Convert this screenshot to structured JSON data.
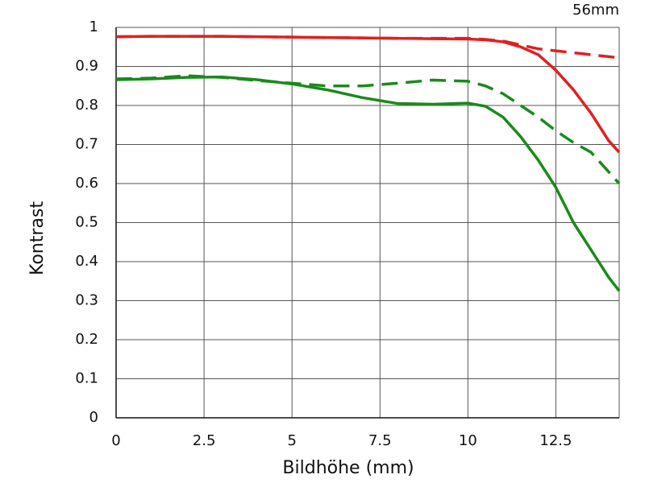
{
  "chart_data": {
    "type": "line",
    "annotation": "56mm",
    "x_label": "Bildhöhe (mm)",
    "y_label": "Kontrast",
    "x": [
      0,
      1,
      2,
      3,
      4,
      5,
      6,
      7,
      8,
      9,
      10,
      10.5,
      11,
      11.5,
      12,
      12.5,
      13,
      13.5,
      14,
      14.3
    ],
    "series": [
      {
        "color": "#e02020",
        "style": "solid",
        "values": [
          0.976,
          0.977,
          0.977,
          0.977,
          0.976,
          0.975,
          0.974,
          0.973,
          0.972,
          0.971,
          0.97,
          0.968,
          0.963,
          0.95,
          0.93,
          0.89,
          0.84,
          0.78,
          0.71,
          0.68
        ]
      },
      {
        "color": "#e02020",
        "style": "dashed",
        "values": [
          0.976,
          0.977,
          0.977,
          0.977,
          0.976,
          0.975,
          0.974,
          0.973,
          0.972,
          0.972,
          0.972,
          0.969,
          0.965,
          0.955,
          0.945,
          0.94,
          0.935,
          0.93,
          0.925,
          0.922
        ]
      },
      {
        "color": "#1a8a1a",
        "style": "solid",
        "values": [
          0.866,
          0.868,
          0.872,
          0.873,
          0.866,
          0.855,
          0.84,
          0.82,
          0.805,
          0.803,
          0.806,
          0.798,
          0.77,
          0.72,
          0.66,
          0.59,
          0.5,
          0.43,
          0.36,
          0.325
        ]
      },
      {
        "color": "#1a8a1a",
        "style": "dashed",
        "values": [
          0.868,
          0.87,
          0.876,
          0.872,
          0.864,
          0.857,
          0.85,
          0.85,
          0.857,
          0.865,
          0.862,
          0.85,
          0.83,
          0.8,
          0.77,
          0.735,
          0.705,
          0.68,
          0.63,
          0.6
        ]
      }
    ],
    "xlim": [
      0,
      14.3
    ],
    "xticks": [
      0,
      2.5,
      5,
      7.5,
      10,
      12.5
    ],
    "ylim": [
      0,
      1
    ],
    "yticks": [
      0,
      0.1,
      0.2,
      0.3,
      0.4,
      0.5,
      0.6,
      0.7,
      0.8,
      0.9,
      1
    ],
    "grid": true
  }
}
